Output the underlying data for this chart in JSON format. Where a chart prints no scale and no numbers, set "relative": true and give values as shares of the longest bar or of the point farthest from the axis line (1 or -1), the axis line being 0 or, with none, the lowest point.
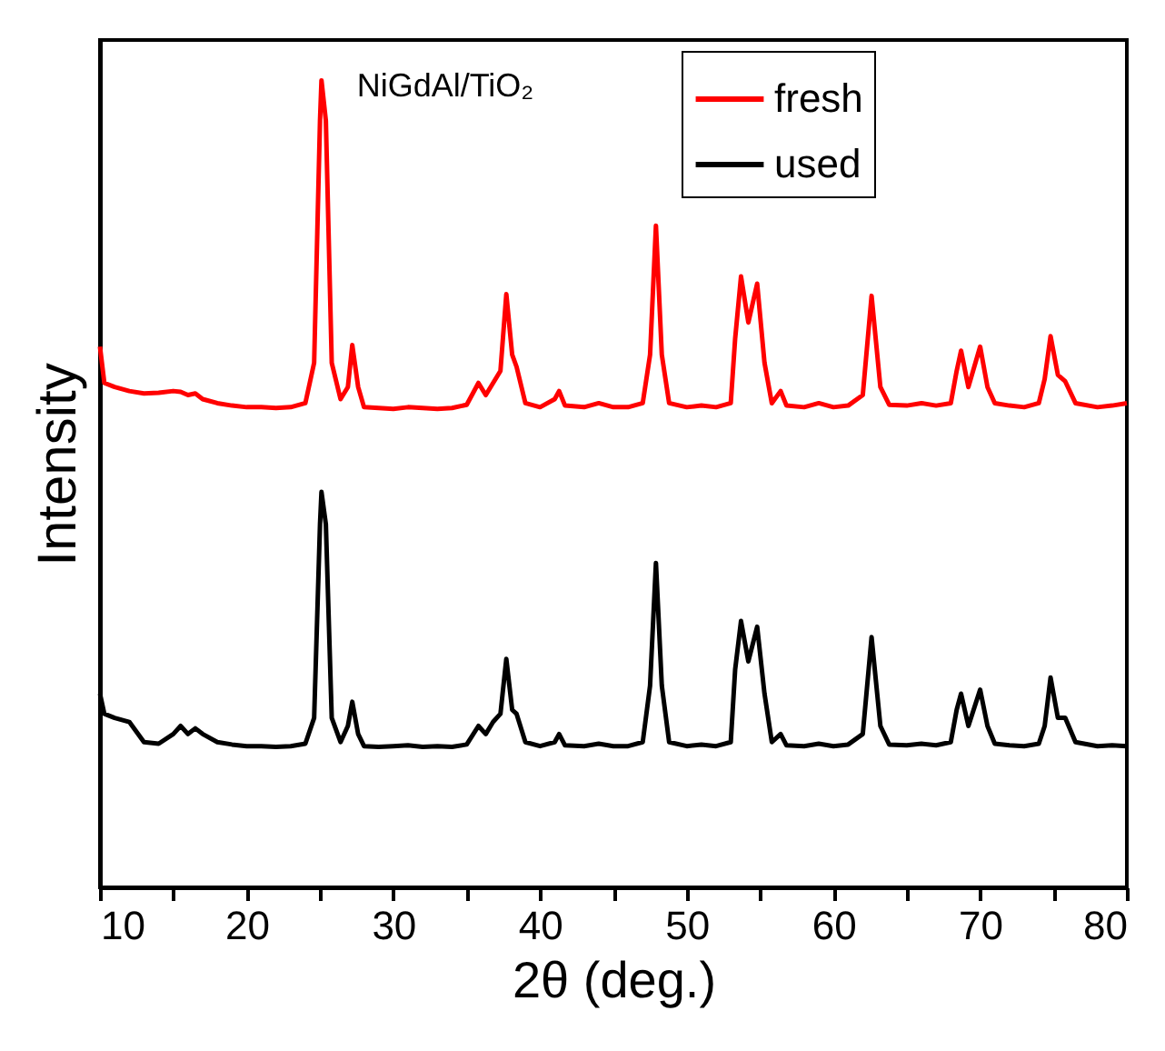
{
  "chart_data": {
    "type": "line",
    "relative": true,
    "xlabel": "2θ (deg.)",
    "ylabel": "Intensity",
    "annotations": [
      "NiGdAl/TiO₂"
    ],
    "xlim": [
      10,
      80
    ],
    "xticks": [
      10,
      {
        "value": 15,
        "label": null
      },
      20,
      {
        "value": 25,
        "label": null
      },
      30,
      {
        "value": 35,
        "label": null
      },
      40,
      {
        "value": 45,
        "label": null
      },
      50,
      {
        "value": 55,
        "label": null
      },
      60,
      {
        "value": 65,
        "label": null
      },
      70,
      {
        "value": 75,
        "label": null
      },
      80
    ],
    "legend": "top right",
    "line_style": "solid",
    "marker": "none",
    "grid": false,
    "x": [
      10,
      10.3,
      11,
      12,
      13,
      14,
      15,
      15.5,
      16,
      16.5,
      17,
      18,
      19,
      20,
      21,
      22,
      23,
      24,
      24.6,
      25.0,
      25.1,
      25.4,
      25.8,
      26.4,
      26.9,
      27.2,
      27.6,
      28,
      29,
      30,
      31,
      32,
      33,
      34,
      35,
      35.8,
      36.3,
      36.8,
      37.3,
      37.7,
      38.1,
      38.4,
      39,
      40,
      41,
      41.3,
      41.7,
      43,
      44,
      45,
      46,
      47,
      47.5,
      47.9,
      48.3,
      48.8,
      50,
      51,
      52,
      53,
      53.3,
      53.7,
      54.2,
      54.8,
      55.3,
      55.8,
      56.4,
      56.8,
      58,
      59,
      60,
      61,
      62,
      62.6,
      63.2,
      63.8,
      65,
      66,
      67,
      68,
      68.4,
      68.7,
      69.2,
      70.0,
      70.5,
      71,
      72,
      73,
      74,
      74.4,
      74.8,
      75.3,
      75.8,
      76.5,
      78,
      79,
      80
    ],
    "series": [
      {
        "name": "fresh",
        "color": "#ff0000",
        "values": [
          0.67,
          0.625,
          0.62,
          0.615,
          0.612,
          0.613,
          0.615,
          0.614,
          0.61,
          0.612,
          0.605,
          0.6,
          0.597,
          0.595,
          0.595,
          0.594,
          0.595,
          0.6,
          0.65,
          0.95,
          1.0,
          0.95,
          0.65,
          0.605,
          0.62,
          0.672,
          0.62,
          0.595,
          0.594,
          0.593,
          0.595,
          0.594,
          0.593,
          0.594,
          0.598,
          0.625,
          0.61,
          0.625,
          0.64,
          0.735,
          0.66,
          0.645,
          0.6,
          0.595,
          0.605,
          0.615,
          0.597,
          0.595,
          0.6,
          0.595,
          0.595,
          0.6,
          0.66,
          0.82,
          0.66,
          0.6,
          0.595,
          0.597,
          0.595,
          0.6,
          0.68,
          0.757,
          0.7,
          0.748,
          0.65,
          0.6,
          0.615,
          0.597,
          0.595,
          0.6,
          0.595,
          0.597,
          0.61,
          0.733,
          0.62,
          0.598,
          0.597,
          0.6,
          0.597,
          0.6,
          0.64,
          0.665,
          0.62,
          0.67,
          0.62,
          0.6,
          0.597,
          0.595,
          0.6,
          0.63,
          0.683,
          0.635,
          0.627,
          0.6,
          0.595,
          0.597,
          0.6
        ]
      },
      {
        "name": "used",
        "color": "#000000",
        "values": [
          0.24,
          0.215,
          0.21,
          0.205,
          0.18,
          0.178,
          0.19,
          0.2,
          0.19,
          0.197,
          0.19,
          0.18,
          0.177,
          0.175,
          0.175,
          0.174,
          0.175,
          0.178,
          0.21,
          0.45,
          0.49,
          0.45,
          0.21,
          0.18,
          0.2,
          0.23,
          0.19,
          0.175,
          0.174,
          0.175,
          0.176,
          0.174,
          0.175,
          0.174,
          0.177,
          0.2,
          0.19,
          0.205,
          0.215,
          0.283,
          0.22,
          0.215,
          0.18,
          0.175,
          0.18,
          0.19,
          0.176,
          0.175,
          0.178,
          0.175,
          0.175,
          0.18,
          0.25,
          0.402,
          0.25,
          0.18,
          0.175,
          0.177,
          0.175,
          0.18,
          0.27,
          0.33,
          0.28,
          0.323,
          0.24,
          0.18,
          0.19,
          0.176,
          0.175,
          0.178,
          0.175,
          0.177,
          0.19,
          0.31,
          0.2,
          0.177,
          0.176,
          0.178,
          0.176,
          0.18,
          0.22,
          0.24,
          0.2,
          0.245,
          0.2,
          0.178,
          0.176,
          0.175,
          0.178,
          0.2,
          0.26,
          0.21,
          0.21,
          0.18,
          0.175,
          0.176,
          0.175
        ]
      }
    ]
  }
}
